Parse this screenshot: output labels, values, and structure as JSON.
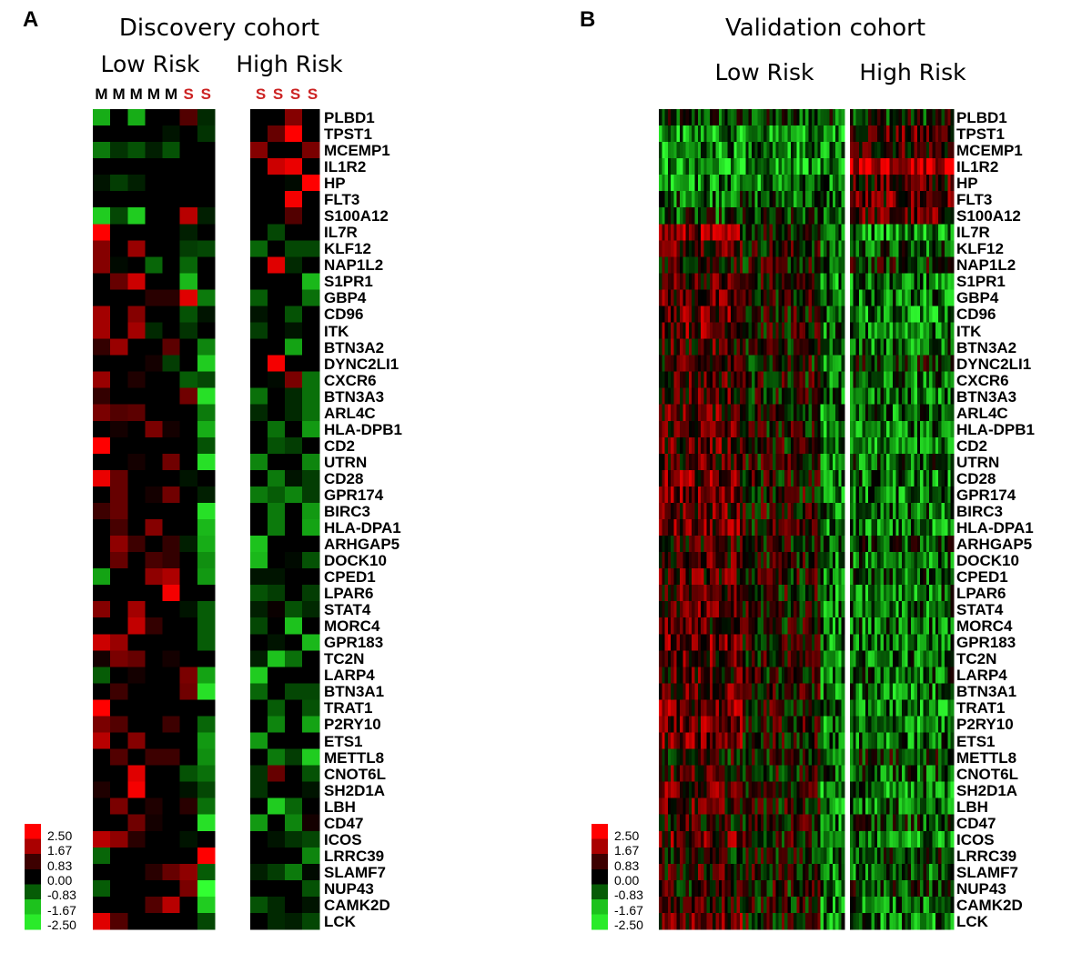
{
  "chart_data": [
    {
      "type": "heatmap",
      "panel_letter": "A",
      "title": "Discovery cohort",
      "groups": [
        {
          "name": "Low Risk",
          "column_labels": [
            "M",
            "M",
            "M",
            "M",
            "M",
            "S",
            "S"
          ],
          "label_colors": [
            "#000000",
            "#000000",
            "#000000",
            "#000000",
            "#000000",
            "#cc2222",
            "#cc2222"
          ]
        },
        {
          "name": "High Risk",
          "column_labels": [
            "S",
            "S",
            "S",
            "S"
          ],
          "label_colors": [
            "#cc2222",
            "#cc2222",
            "#cc2222",
            "#cc2222"
          ]
        }
      ],
      "genes": [
        "PLBD1",
        "TPST1",
        "MCEMP1",
        "IL1R2",
        "HP",
        "FLT3",
        "S100A12",
        "IL7R",
        "KLF12",
        "NAP1L2",
        "S1PR1",
        "GBP4",
        "CD96",
        "ITK",
        "BTN3A2",
        "DYNC2LI1",
        "CXCR6",
        "BTN3A3",
        "ARL4C",
        "HLA-DPB1",
        "CD2",
        "UTRN",
        "CD28",
        "GPR174",
        "BIRC3",
        "HLA-DPA1",
        "ARHGAP5",
        "DOCK10",
        "CPED1",
        "LPAR6",
        "STAT4",
        "MORC4",
        "GPR183",
        "TC2N",
        "LARP4",
        "BTN3A1",
        "TRAT1",
        "P2RY10",
        "ETS1",
        "METTL8",
        "CNOT6L",
        "SH2D1A",
        "LBH",
        "CD47",
        "ICOS",
        "LRRC39",
        "SLAMF7",
        "NUP43",
        "CAMK2D",
        "LCK"
      ],
      "low_risk_values": [
        [
          -1.7,
          0,
          -1.7,
          0,
          0,
          0.8,
          -0.4
        ],
        [
          0,
          0,
          0,
          0,
          -0.2,
          0,
          -0.5
        ],
        [
          -1.2,
          -0.5,
          -0.8,
          -0.3,
          -0.8,
          0,
          0
        ],
        [
          0,
          0,
          0,
          0,
          0,
          0,
          0
        ],
        [
          -0.2,
          -0.6,
          -0.3,
          0,
          0,
          0,
          0
        ],
        [
          0,
          0,
          0,
          0,
          0,
          0,
          0
        ],
        [
          -2,
          -0.7,
          -2,
          0,
          0,
          1.8,
          -0.3
        ],
        [
          2.5,
          0,
          0,
          0,
          0,
          -0.3,
          0
        ],
        [
          1.3,
          0,
          1.5,
          0,
          0,
          -0.6,
          -0.7
        ],
        [
          1.3,
          -0.1,
          0,
          -1,
          0,
          -1,
          0
        ],
        [
          0,
          1,
          2,
          0,
          0,
          -1.8,
          0
        ],
        [
          0,
          0,
          0,
          0.4,
          0.4,
          2.2,
          -1.2
        ],
        [
          1.6,
          0,
          1.3,
          0,
          0,
          -0.8,
          -0.2
        ],
        [
          1.6,
          0,
          1.6,
          -0.4,
          0,
          -0.5,
          0
        ],
        [
          0.5,
          1.5,
          0,
          0,
          0.9,
          0,
          -1.3
        ],
        [
          0,
          0,
          0,
          0.2,
          -0.6,
          0,
          -2
        ],
        [
          1.5,
          0,
          0.3,
          0,
          0,
          -0.9,
          -0.7
        ],
        [
          0.5,
          0,
          0,
          0,
          0,
          1.1,
          -2.2
        ],
        [
          1.2,
          0.8,
          0.9,
          0,
          0,
          0,
          -1.2
        ],
        [
          0,
          0.2,
          0,
          1.2,
          0.2,
          0,
          -1.7
        ],
        [
          2.5,
          0,
          0,
          0,
          0,
          0,
          -0.8
        ],
        [
          0,
          0,
          0.2,
          0,
          1.1,
          0,
          -2.2
        ],
        [
          2.3,
          1,
          0,
          0,
          0,
          -0.2,
          0
        ],
        [
          0,
          1,
          0,
          0.2,
          1.1,
          0,
          -0.3
        ],
        [
          0.6,
          1,
          0,
          0,
          0,
          0,
          -2.2
        ],
        [
          0,
          0.7,
          0,
          1.3,
          0,
          0,
          -1.8
        ],
        [
          0,
          1.4,
          0.6,
          0,
          0.5,
          -0.3,
          -1.7
        ],
        [
          0,
          1,
          0,
          0.7,
          0.5,
          0,
          -1.4
        ],
        [
          -1.6,
          0,
          0,
          1.4,
          1.7,
          0,
          -1.5
        ],
        [
          0,
          0,
          0,
          0,
          2.4,
          0,
          0
        ],
        [
          1.3,
          0,
          1.6,
          0,
          0,
          -0.2,
          -0.9
        ],
        [
          0,
          0,
          1.9,
          0.5,
          0,
          0,
          -0.9
        ],
        [
          2,
          1.5,
          0,
          0,
          0,
          0,
          -0.9
        ],
        [
          0.2,
          1.2,
          1,
          0,
          0.2,
          0,
          0
        ],
        [
          -0.9,
          0,
          0.2,
          0,
          0,
          1.2,
          -1.6
        ],
        [
          0,
          0.6,
          0,
          0,
          0,
          1.1,
          -2.2
        ],
        [
          2.5,
          0,
          0,
          0,
          0,
          0,
          0
        ],
        [
          1.2,
          0.8,
          0,
          0,
          0.6,
          0,
          -1
        ],
        [
          1.8,
          0,
          1.3,
          0,
          0,
          0,
          -1.5
        ],
        [
          0,
          0.8,
          0,
          0.6,
          0.6,
          0,
          -1.4
        ],
        [
          0,
          0,
          2.2,
          0,
          0,
          -0.8,
          -1.1
        ],
        [
          0.3,
          0,
          2.4,
          0,
          0,
          -0.2,
          -0.7
        ],
        [
          0,
          1.2,
          0,
          0.3,
          0,
          0.4,
          -1.1
        ],
        [
          0,
          0,
          1.1,
          0.2,
          0,
          0,
          -2.2
        ],
        [
          1.8,
          1.4,
          0.4,
          0,
          0,
          -0.2,
          0
        ],
        [
          -1,
          0,
          0,
          0,
          0,
          0,
          2.5
        ],
        [
          0,
          0,
          0,
          0.4,
          1,
          1.4,
          -0.9
        ],
        [
          -0.9,
          0,
          0,
          0,
          0,
          1.2,
          -2.5
        ],
        [
          0,
          0,
          0,
          0.8,
          1.8,
          0,
          -2
        ],
        [
          2.2,
          0.8,
          0,
          0,
          0,
          0,
          -0.7
        ]
      ],
      "high_risk_values": [
        [
          0,
          0,
          1.3,
          0
        ],
        [
          0,
          1,
          2.5,
          0
        ],
        [
          1.3,
          0,
          0,
          1.2
        ],
        [
          0,
          2,
          2.3,
          0
        ],
        [
          0,
          0,
          -0.1,
          2.5
        ],
        [
          0,
          0,
          2.4,
          0
        ],
        [
          0,
          0,
          0.8,
          0
        ],
        [
          0,
          -0.7,
          0,
          0
        ],
        [
          -1,
          0,
          -0.7,
          -0.7
        ],
        [
          0,
          2.2,
          -0.4,
          0
        ],
        [
          0,
          0,
          0,
          -1.8
        ],
        [
          -0.9,
          0,
          0,
          -1.1
        ],
        [
          -0.2,
          0,
          -0.8,
          0
        ],
        [
          -0.6,
          0,
          -0.2,
          0
        ],
        [
          0,
          0,
          -1.6,
          0
        ],
        [
          0,
          2.4,
          0,
          0
        ],
        [
          0,
          -0.1,
          1.2,
          -1.1
        ],
        [
          -1.1,
          0,
          -0.4,
          -1.1
        ],
        [
          -0.4,
          0,
          -0.4,
          -1.1
        ],
        [
          0,
          -1.1,
          0,
          -1.5
        ],
        [
          0,
          -0.8,
          -0.6,
          0
        ],
        [
          -1.3,
          0,
          0,
          -1.3
        ],
        [
          0,
          -1.2,
          -0.2,
          -0.6
        ],
        [
          -1.2,
          -0.9,
          -1.3,
          -0.6
        ],
        [
          0,
          -1.2,
          0,
          -1.5
        ],
        [
          0,
          -1.2,
          0,
          -1.6
        ],
        [
          -1.9,
          0,
          0,
          0
        ],
        [
          -1.8,
          0,
          -0.1,
          -0.8
        ],
        [
          -0.2,
          -0.2,
          0,
          0
        ],
        [
          -0.8,
          -0.6,
          0,
          -0.6
        ],
        [
          -0.3,
          0.1,
          -0.8,
          -0.4
        ],
        [
          -0.7,
          0,
          -1.9,
          0
        ],
        [
          0,
          -0.2,
          0,
          -1.8
        ],
        [
          -0.3,
          -1.9,
          -1.1,
          0
        ],
        [
          -2,
          0,
          0,
          0
        ],
        [
          -1,
          0,
          -0.7,
          -0.7
        ],
        [
          0,
          -0.9,
          0,
          -0.8
        ],
        [
          0,
          -1.3,
          0,
          -1.6
        ],
        [
          -1.5,
          0,
          0,
          0
        ],
        [
          0,
          -1.2,
          -0.6,
          -2
        ],
        [
          -0.5,
          1,
          0,
          -0.8
        ],
        [
          -0.5,
          0,
          0,
          -0.2
        ],
        [
          0,
          -2,
          -1,
          0
        ],
        [
          -1.5,
          0,
          -1.3,
          0.2
        ],
        [
          0,
          -0.2,
          -0.5,
          -0.7
        ],
        [
          0,
          0,
          0,
          -1.3
        ],
        [
          -0.3,
          -0.6,
          -1.2,
          -0.1
        ],
        [
          0,
          0,
          0,
          -0.8
        ],
        [
          -0.8,
          -0.4,
          0,
          -0.2
        ],
        [
          0,
          -0.4,
          -0.3,
          -0.7
        ]
      ],
      "color_scale": {
        "min": -2.5,
        "max": 2.5,
        "low_color": "#33ff33",
        "mid_color": "#000000",
        "high_color": "#ff0000",
        "ticks": [
          "2.50",
          "1.67",
          "0.83",
          "0.00",
          "-0.83",
          "-1.67",
          "-2.50"
        ]
      }
    },
    {
      "type": "heatmap",
      "panel_letter": "B",
      "title": "Validation cohort",
      "groups": [
        {
          "name": "Low Risk"
        },
        {
          "name": "High Risk"
        }
      ],
      "genes": [
        "PLBD1",
        "TPST1",
        "MCEMP1",
        "IL1R2",
        "HP",
        "FLT3",
        "S100A12",
        "IL7R",
        "KLF12",
        "NAP1L2",
        "S1PR1",
        "GBP4",
        "CD96",
        "ITK",
        "BTN3A2",
        "DYNC2LI1",
        "CXCR6",
        "BTN3A3",
        "ARL4C",
        "HLA-DPB1",
        "CD2",
        "UTRN",
        "CD28",
        "GPR174",
        "BIRC3",
        "HLA-DPA1",
        "ARHGAP5",
        "DOCK10",
        "CPED1",
        "LPAR6",
        "STAT4",
        "MORC4",
        "GPR183",
        "TC2N",
        "LARP4",
        "BTN3A1",
        "TRAT1",
        "P2RY10",
        "ETS1",
        "METTL8",
        "CNOT6L",
        "SH2D1A",
        "LBH",
        "CD47",
        "ICOS",
        "LRRC39",
        "SLAMF7",
        "NUP43",
        "CAMK2D",
        "LCK"
      ],
      "low_risk_mean": [
        -0.6,
        -1.4,
        -1.3,
        -1.6,
        -1.2,
        -0.8,
        -0.6,
        1.2,
        0.9,
        0.3,
        0.7,
        0.7,
        1.0,
        1.0,
        0.5,
        0.3,
        0.7,
        0.6,
        0.8,
        0.8,
        0.8,
        0.6,
        1.0,
        0.9,
        0.8,
        0.9,
        0.4,
        0.6,
        0.7,
        0.6,
        0.7,
        0.6,
        0.9,
        0.8,
        0.6,
        0.7,
        1.0,
        0.9,
        0.9,
        0.1,
        0.5,
        0.8,
        0.6,
        0.2,
        0.8,
        0.1,
        0.4,
        0.2,
        0.5,
        0.8
      ],
      "high_risk_mean": [
        -0.2,
        0.6,
        0.5,
        2.1,
        0.6,
        0.8,
        0.7,
        -1.2,
        -0.8,
        -0.2,
        -1.0,
        -1.1,
        -1.2,
        -1.2,
        -1.0,
        -0.4,
        -1.0,
        -1.1,
        -1.0,
        -1.2,
        -1.1,
        -0.9,
        -1.1,
        -1.2,
        -1.1,
        -1.2,
        -0.7,
        -1.0,
        -1.0,
        -1.0,
        -1.0,
        -0.9,
        -1.1,
        -1.1,
        -0.9,
        -1.1,
        -1.2,
        -1.2,
        -1.1,
        -0.2,
        -0.8,
        -1.1,
        -1.0,
        -0.5,
        -1.1,
        -0.4,
        -0.9,
        -0.5,
        -1.0,
        -1.1
      ],
      "color_scale": {
        "min": -2.5,
        "max": 2.5,
        "ticks": [
          "2.50",
          "1.67",
          "0.83",
          "0.00",
          "-0.83",
          "-1.67",
          "-2.50"
        ]
      }
    }
  ]
}
